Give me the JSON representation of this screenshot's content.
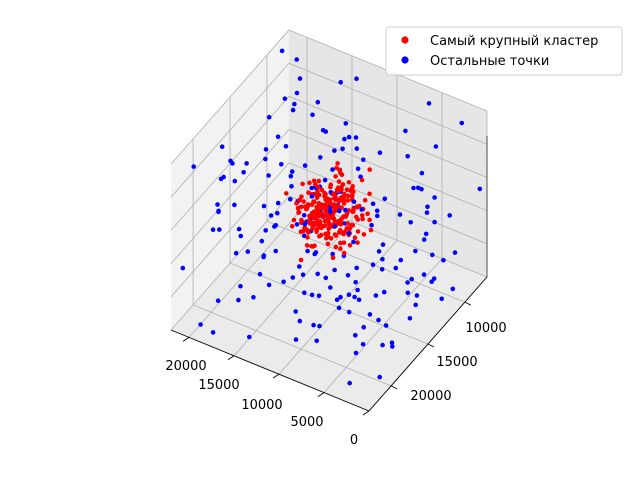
{
  "chart_data": {
    "type": "scatter3d",
    "title": "",
    "xlabel": "",
    "ylabel": "",
    "zlabel": "",
    "x_ticks": [
      "20000",
      "15000",
      "10000",
      "5000",
      "0"
    ],
    "y_ticks": [
      "10000",
      "15000",
      "20000"
    ],
    "xlim": [
      0,
      22000
    ],
    "ylim": [
      7000,
      23000
    ],
    "zlim": [
      0,
      1
    ],
    "legend": {
      "placement": "top-right",
      "entries": [
        {
          "label": "Самый крупный кластер",
          "color": "#ff0000"
        },
        {
          "label": "Остальные точки",
          "color": "#0000ff"
        }
      ]
    },
    "series": [
      {
        "name": "Самый крупный кластер",
        "color": "#ff0000",
        "count": 260,
        "center": [
          11000,
          15000,
          0.55
        ],
        "spread": [
          3200,
          2600,
          0.13
        ]
      },
      {
        "name": "Остальные точки",
        "color": "#0000ff",
        "count": 210,
        "center": [
          11000,
          15000,
          0.45
        ],
        "spread": [
          11000,
          8000,
          0.45
        ]
      }
    ]
  }
}
